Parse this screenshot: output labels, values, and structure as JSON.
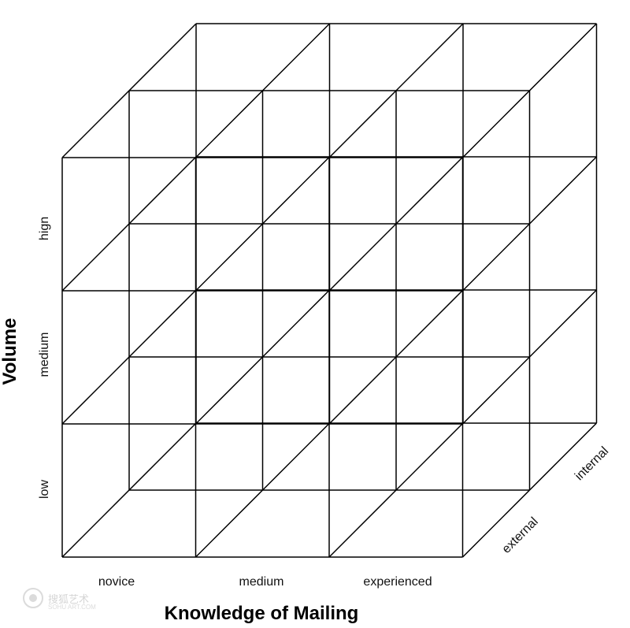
{
  "diagram": {
    "x_axis": {
      "title": "Knowledge of Mailing",
      "ticks": [
        "novice",
        "medium",
        "experienced"
      ]
    },
    "y_axis": {
      "title": "Volume",
      "ticks": [
        "hign",
        "medium",
        "low"
      ]
    },
    "z_axis": {
      "ticks": [
        "external",
        "internal"
      ]
    },
    "grid": {
      "x_cells": 3,
      "y_cells": 3,
      "z_layers": 2,
      "line_color": "#000000"
    },
    "watermark": {
      "text": "搜狐艺术",
      "sub": "SOHU ART.COM"
    }
  }
}
